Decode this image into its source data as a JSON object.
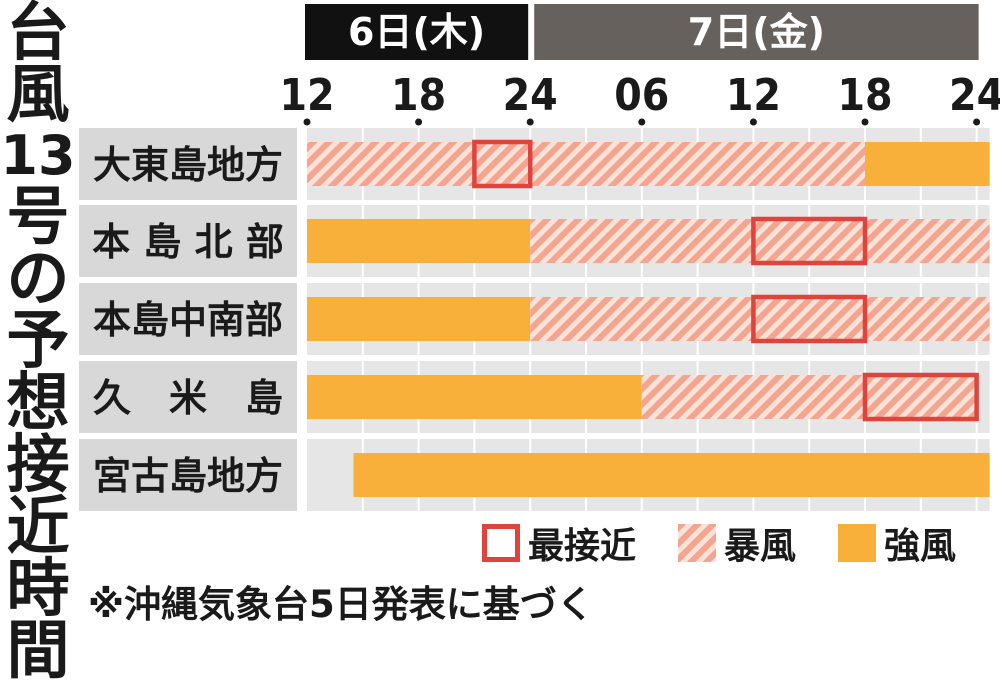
{
  "title": "台風13号の予想接近時間",
  "title_chars": [
    "台",
    "風",
    "13",
    "号",
    "の",
    "予",
    "想",
    "接",
    "近",
    "時",
    "間"
  ],
  "days": [
    {
      "label": "6日(木)",
      "color": "#111111"
    },
    {
      "label": "7日(金)",
      "color": "#67615d"
    }
  ],
  "chart_data": {
    "type": "timeline",
    "x_unit": "hours from 6日 12:00",
    "xlim": [
      0,
      36.7
    ],
    "x_ticks": [
      0,
      6,
      12,
      18,
      24,
      30,
      36
    ],
    "x_tick_labels": [
      "12",
      "18",
      "24",
      "06",
      "12",
      "18",
      "24"
    ],
    "categories": [
      "大東島地方",
      "本島北部",
      "本島中南部",
      "久米島",
      "宮古島地方"
    ],
    "bars": [
      {
        "region": "大東島地方",
        "segments": [
          {
            "kind": "storm",
            "start": 0,
            "end": 30
          },
          {
            "kind": "strong",
            "start": 30,
            "end": 36.7
          }
        ],
        "closest": [
          9,
          12
        ]
      },
      {
        "region": "本島北部",
        "segments": [
          {
            "kind": "strong",
            "start": 0,
            "end": 12
          },
          {
            "kind": "storm",
            "start": 12,
            "end": 36.7
          }
        ],
        "closest": [
          24,
          30
        ]
      },
      {
        "region": "本島中南部",
        "segments": [
          {
            "kind": "strong",
            "start": 0,
            "end": 12
          },
          {
            "kind": "storm",
            "start": 12,
            "end": 36.7
          }
        ],
        "closest": [
          24,
          30
        ]
      },
      {
        "region": "久米島",
        "segments": [
          {
            "kind": "strong",
            "start": 0,
            "end": 18
          },
          {
            "kind": "storm",
            "start": 18,
            "end": 36
          }
        ],
        "closest": [
          30,
          36
        ]
      },
      {
        "region": "宮古島地方",
        "segments": [
          {
            "kind": "strong",
            "start": 2.5,
            "end": 36.7
          }
        ],
        "closest": null
      }
    ],
    "legend": [
      {
        "kind": "closest",
        "label": "最接近"
      },
      {
        "kind": "storm",
        "label": "暴風"
      },
      {
        "kind": "strong",
        "label": "強風"
      }
    ],
    "grid": true,
    "colors": {
      "closest": "#e0433b",
      "storm_stripe": "#f4a58f",
      "storm_bg": "#fbe2d9",
      "strong": "#f8b03a",
      "label_bg": "#d8d8d8",
      "row_bg": "#e6e6e6"
    }
  },
  "region_labels": [
    "大東島地方",
    "本 島 北 部",
    "本島中南部",
    "久　米　島",
    "宮古島地方"
  ],
  "legend_labels": {
    "closest": "最接近",
    "storm": "暴風",
    "strong": "強風"
  },
  "note": "※沖縄気象台5日発表に基づく"
}
